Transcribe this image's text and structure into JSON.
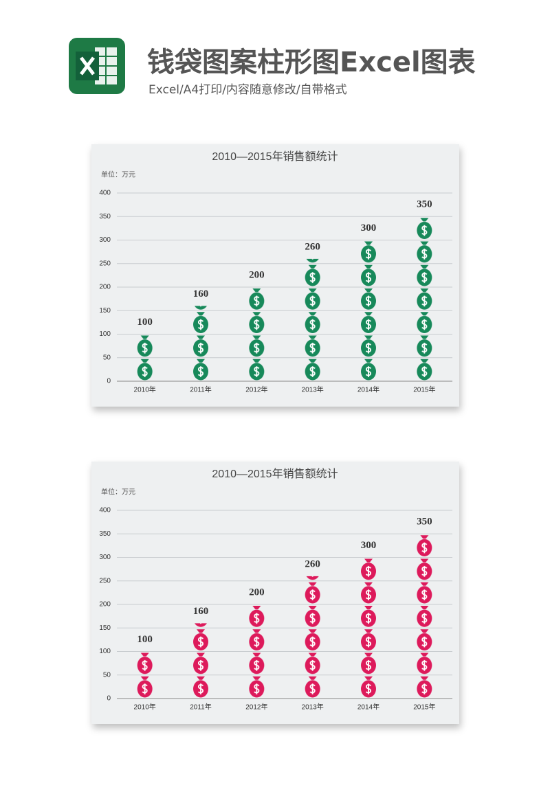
{
  "header": {
    "title": "钱袋图案柱形图Excel图表",
    "subtitle": "Excel/A4打印/内容随意修改/自带格式"
  },
  "chart_data": [
    {
      "type": "bar",
      "title": "2010—2015年销售额统计",
      "unit": "单位：万元",
      "categories": [
        "2010年",
        "2011年",
        "2012年",
        "2013年",
        "2014年",
        "2015年"
      ],
      "values": [
        100,
        160,
        200,
        260,
        300,
        350
      ],
      "color": "#17895a",
      "ylim": [
        0,
        400
      ],
      "yticks": [
        0,
        50,
        100,
        150,
        200,
        250,
        300,
        350,
        400
      ],
      "grid": true
    },
    {
      "type": "bar",
      "title": "2010—2015年销售额统计",
      "unit": "单位：万元",
      "categories": [
        "2010年",
        "2011年",
        "2012年",
        "2013年",
        "2014年",
        "2015年"
      ],
      "values": [
        100,
        160,
        200,
        260,
        300,
        350
      ],
      "color": "#dd1a5b",
      "ylim": [
        0,
        400
      ],
      "yticks": [
        0,
        50,
        100,
        150,
        200,
        250,
        300,
        350,
        400
      ],
      "grid": true
    }
  ]
}
